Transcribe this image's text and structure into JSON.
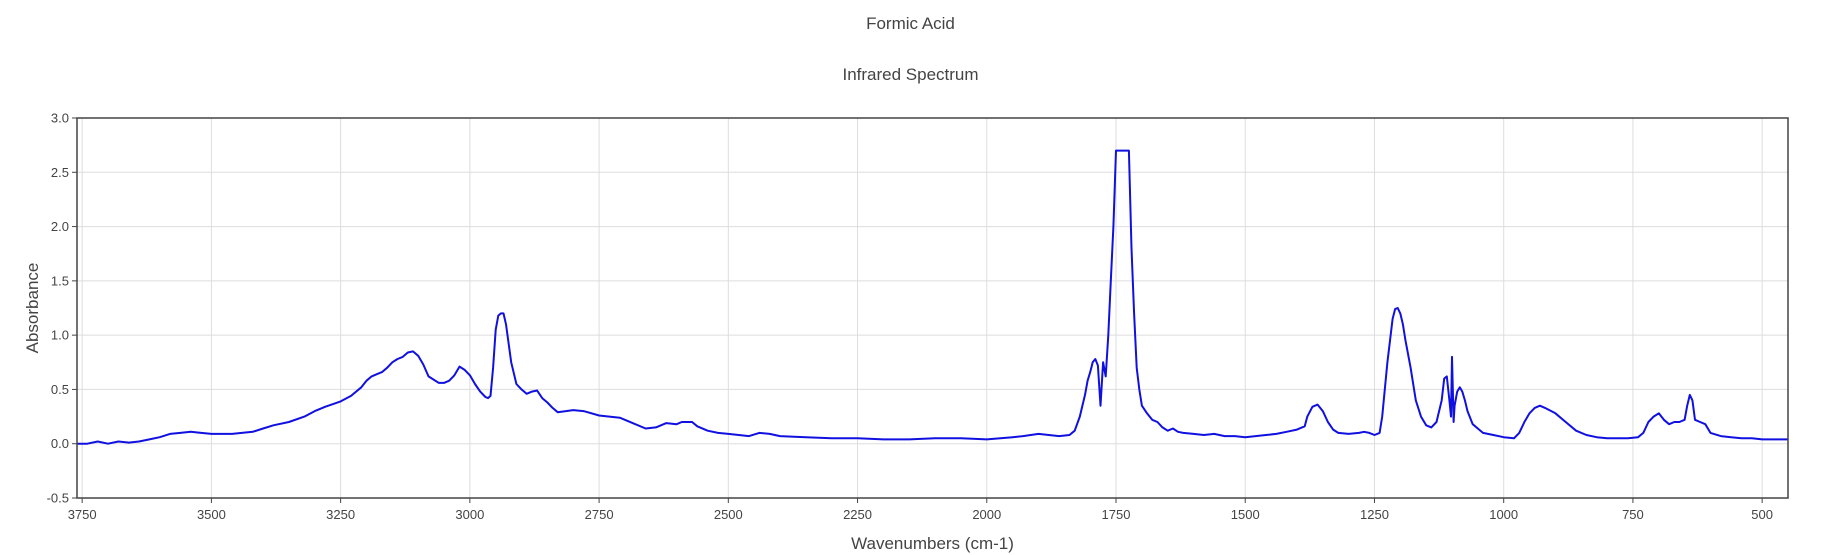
{
  "chart_data": {
    "type": "line",
    "title": "Formic Acid",
    "subtitle": "Infrared Spectrum",
    "xlabel": "Wavenumbers (cm-1)",
    "ylabel": "Absorbance",
    "x_reversed": true,
    "xlim": [
      3760,
      450
    ],
    "ylim": [
      -0.5,
      3.0
    ],
    "xticks": [
      3750,
      3500,
      3250,
      3000,
      2750,
      2500,
      2250,
      2000,
      1750,
      1500,
      1250,
      1000,
      750,
      500
    ],
    "yticks": [
      -0.5,
      0.0,
      0.5,
      1.0,
      1.5,
      2.0,
      2.5,
      3.0
    ],
    "grid": true,
    "legend": "none",
    "line_color": "#1010e0",
    "series": [
      {
        "x": [
          3760,
          3740,
          3720,
          3700,
          3680,
          3660,
          3640,
          3620,
          3600,
          3580,
          3560,
          3540,
          3520,
          3500,
          3460,
          3420,
          3400,
          3380,
          3350,
          3320,
          3300,
          3280,
          3250,
          3230,
          3210,
          3200,
          3190,
          3180,
          3170,
          3160,
          3150,
          3140,
          3130,
          3120,
          3110,
          3100,
          3090,
          3080,
          3060,
          3050,
          3040,
          3030,
          3020,
          3010,
          3000,
          2990,
          2980,
          2970,
          2965,
          2960,
          2955,
          2950,
          2945,
          2940,
          2935,
          2930,
          2920,
          2910,
          2900,
          2890,
          2880,
          2870,
          2860,
          2850,
          2840,
          2830,
          2800,
          2780,
          2750,
          2730,
          2710,
          2700,
          2680,
          2660,
          2640,
          2620,
          2600,
          2590,
          2570,
          2560,
          2540,
          2520,
          2500,
          2480,
          2460,
          2440,
          2420,
          2400,
          2350,
          2300,
          2250,
          2200,
          2150,
          2100,
          2050,
          2000,
          1950,
          1930,
          1900,
          1880,
          1860,
          1840,
          1830,
          1820,
          1810,
          1805,
          1800,
          1795,
          1790,
          1785,
          1780,
          1775,
          1770,
          1765,
          1760,
          1755,
          1750,
          1745,
          1740,
          1735,
          1730,
          1725,
          1720,
          1715,
          1710,
          1705,
          1700,
          1690,
          1680,
          1670,
          1660,
          1650,
          1640,
          1630,
          1620,
          1600,
          1580,
          1560,
          1540,
          1520,
          1500,
          1480,
          1460,
          1440,
          1420,
          1400,
          1385,
          1380,
          1370,
          1360,
          1350,
          1340,
          1330,
          1320,
          1300,
          1280,
          1270,
          1260,
          1250,
          1240,
          1235,
          1230,
          1225,
          1220,
          1215,
          1210,
          1205,
          1200,
          1195,
          1190,
          1180,
          1170,
          1160,
          1150,
          1140,
          1130,
          1120,
          1115,
          1110,
          1105,
          1102,
          1100,
          1097,
          1095,
          1090,
          1085,
          1080,
          1075,
          1070,
          1060,
          1050,
          1040,
          1020,
          1000,
          980,
          970,
          960,
          950,
          940,
          930,
          920,
          900,
          880,
          860,
          840,
          820,
          800,
          780,
          760,
          740,
          730,
          720,
          710,
          700,
          690,
          680,
          670,
          660,
          650,
          645,
          640,
          635,
          630,
          620,
          610,
          600,
          580,
          560,
          540,
          520,
          500,
          480,
          460,
          450
        ],
        "y": [
          0.0,
          0.0,
          0.02,
          0.0,
          0.02,
          0.01,
          0.02,
          0.04,
          0.06,
          0.09,
          0.1,
          0.11,
          0.1,
          0.09,
          0.09,
          0.11,
          0.14,
          0.17,
          0.2,
          0.25,
          0.3,
          0.34,
          0.39,
          0.44,
          0.52,
          0.58,
          0.62,
          0.64,
          0.66,
          0.7,
          0.75,
          0.78,
          0.8,
          0.84,
          0.85,
          0.81,
          0.73,
          0.62,
          0.56,
          0.56,
          0.58,
          0.63,
          0.71,
          0.68,
          0.63,
          0.55,
          0.48,
          0.43,
          0.42,
          0.44,
          0.7,
          1.05,
          1.18,
          1.2,
          1.2,
          1.1,
          0.75,
          0.55,
          0.5,
          0.46,
          0.48,
          0.49,
          0.42,
          0.38,
          0.33,
          0.29,
          0.31,
          0.3,
          0.26,
          0.25,
          0.24,
          0.22,
          0.18,
          0.14,
          0.15,
          0.19,
          0.18,
          0.2,
          0.2,
          0.16,
          0.12,
          0.1,
          0.09,
          0.08,
          0.07,
          0.1,
          0.09,
          0.07,
          0.06,
          0.05,
          0.05,
          0.04,
          0.04,
          0.05,
          0.05,
          0.04,
          0.06,
          0.07,
          0.09,
          0.08,
          0.07,
          0.08,
          0.12,
          0.25,
          0.45,
          0.58,
          0.66,
          0.75,
          0.78,
          0.72,
          0.35,
          0.75,
          0.62,
          1.0,
          1.5,
          2.0,
          2.7,
          2.7,
          2.7,
          2.7,
          2.7,
          2.7,
          1.8,
          1.2,
          0.7,
          0.5,
          0.35,
          0.28,
          0.22,
          0.2,
          0.15,
          0.12,
          0.14,
          0.11,
          0.1,
          0.09,
          0.08,
          0.09,
          0.07,
          0.07,
          0.06,
          0.07,
          0.08,
          0.09,
          0.11,
          0.13,
          0.16,
          0.25,
          0.34,
          0.36,
          0.3,
          0.2,
          0.13,
          0.1,
          0.09,
          0.1,
          0.11,
          0.1,
          0.08,
          0.1,
          0.25,
          0.5,
          0.75,
          0.95,
          1.15,
          1.24,
          1.25,
          1.2,
          1.1,
          0.95,
          0.7,
          0.4,
          0.25,
          0.17,
          0.15,
          0.2,
          0.4,
          0.6,
          0.62,
          0.4,
          0.25,
          0.8,
          0.2,
          0.35,
          0.48,
          0.52,
          0.48,
          0.4,
          0.3,
          0.18,
          0.14,
          0.1,
          0.08,
          0.06,
          0.05,
          0.1,
          0.2,
          0.28,
          0.33,
          0.35,
          0.33,
          0.28,
          0.2,
          0.12,
          0.08,
          0.06,
          0.05,
          0.05,
          0.05,
          0.06,
          0.1,
          0.2,
          0.25,
          0.28,
          0.22,
          0.18,
          0.2,
          0.2,
          0.22,
          0.35,
          0.45,
          0.4,
          0.22,
          0.2,
          0.18,
          0.1,
          0.07,
          0.06,
          0.05,
          0.05,
          0.04,
          0.04,
          0.04,
          0.04
        ]
      }
    ]
  }
}
